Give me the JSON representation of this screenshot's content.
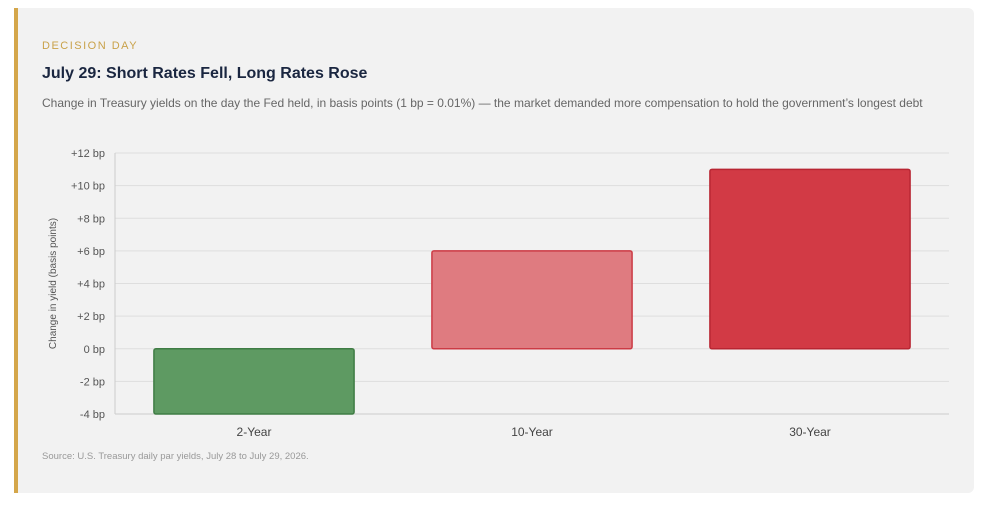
{
  "header": {
    "kicker": "DECISION DAY",
    "title": "July 29: Short Rates Fell, Long Rates Rose",
    "subtitle": "Change in Treasury yields on the day the Fed held, in basis points (1 bp = 0.01%) — the market demanded more compensation to hold the government’s longest debt"
  },
  "footer": {
    "source": "Source: U.S. Treasury daily par yields, July 28 to July 29, 2026."
  },
  "colors": {
    "accent": "#d4a64a",
    "negative": "#5e9a62",
    "negative_border": "#3f7c44",
    "positive_light": "#df7b80",
    "positive_light_border": "#cc3a44",
    "positive_strong": "#d23a45",
    "positive_strong_border": "#b82532"
  },
  "chart_data": {
    "type": "bar",
    "categories": [
      "2-Year",
      "10-Year",
      "30-Year"
    ],
    "values": [
      -4,
      6,
      11
    ],
    "ylabel": "Change in yield (basis points)",
    "ylim": [
      -4,
      12
    ],
    "yticks": [
      -4,
      -2,
      0,
      2,
      4,
      6,
      8,
      10,
      12
    ],
    "ytick_labels": [
      "-4 bp",
      "-2 bp",
      "0 bp",
      "+2 bp",
      "+4 bp",
      "+6 bp",
      "+8 bp",
      "+10 bp",
      "+12 bp"
    ],
    "grid": true,
    "legend": "none"
  }
}
